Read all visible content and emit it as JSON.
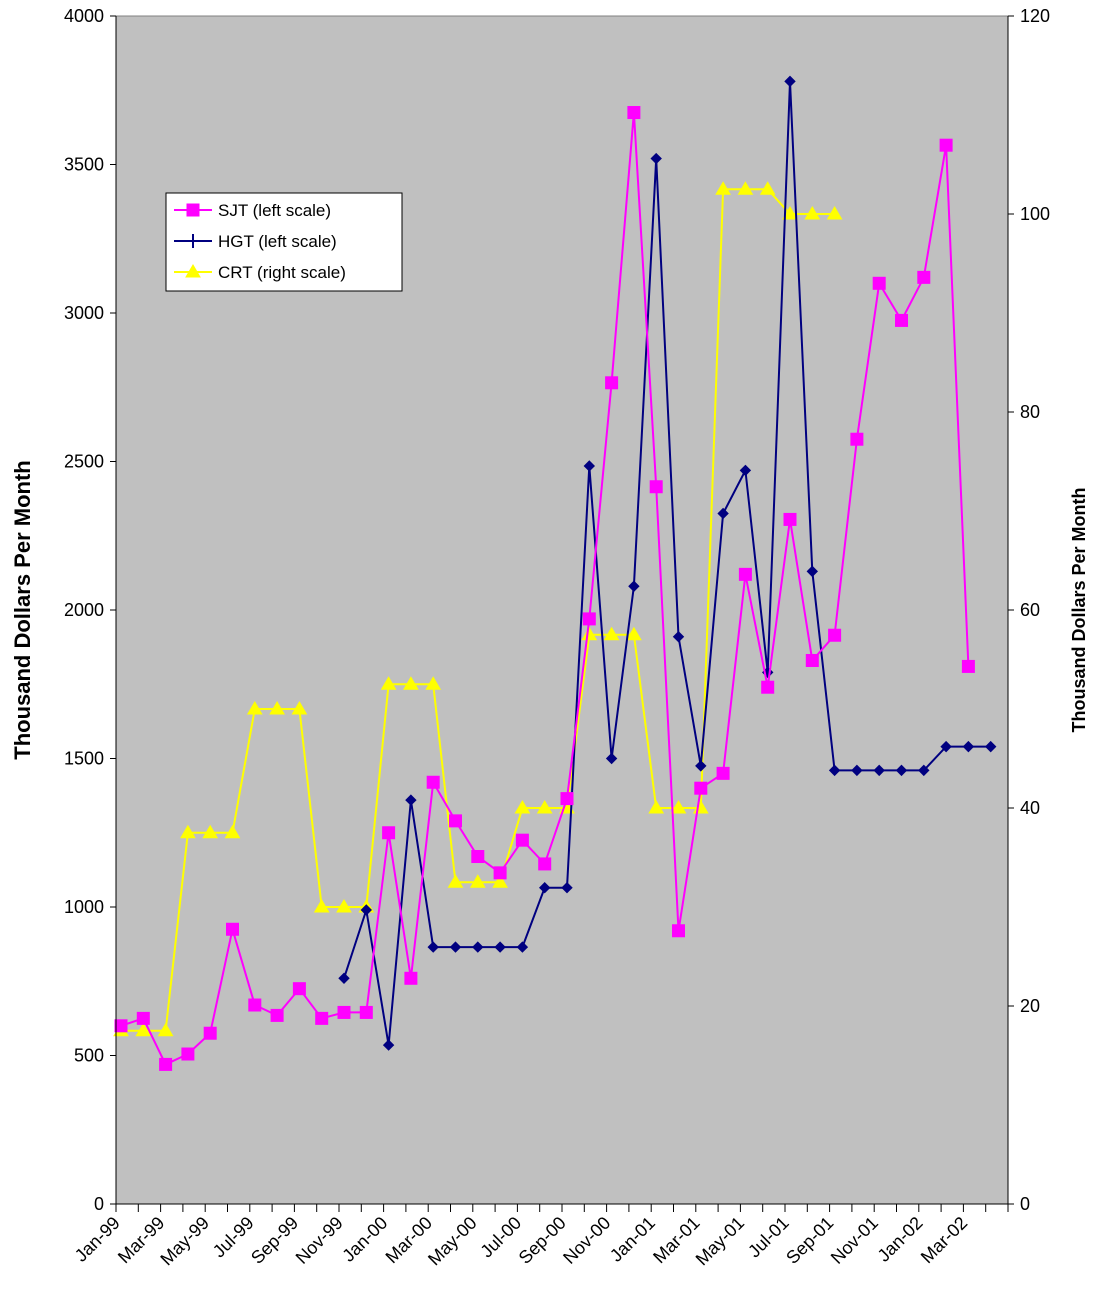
{
  "chart_data": {
    "type": "line",
    "x": [
      "Jan-99",
      "Feb-99",
      "Mar-99",
      "Apr-99",
      "May-99",
      "Jun-99",
      "Jul-99",
      "Aug-99",
      "Sep-99",
      "Oct-99",
      "Nov-99",
      "Dec-99",
      "Jan-00",
      "Feb-00",
      "Mar-00",
      "Apr-00",
      "May-00",
      "Jun-00",
      "Jul-00",
      "Aug-00",
      "Sep-00",
      "Oct-00",
      "Nov-00",
      "Dec-00",
      "Jan-01",
      "Feb-01",
      "Mar-01",
      "Apr-01",
      "May-01",
      "Jun-01",
      "Jul-01",
      "Aug-01",
      "Sep-01",
      "Oct-01",
      "Nov-01",
      "Dec-01",
      "Jan-02",
      "Feb-02",
      "Mar-02",
      "Apr-02"
    ],
    "x_tick_labels": [
      "Jan-99",
      "Mar-99",
      "May-99",
      "Jul-99",
      "Sep-99",
      "Nov-99",
      "Jan-00",
      "Mar-00",
      "May-00",
      "Jul-00",
      "Sep-00",
      "Nov-00",
      "Jan-01",
      "Mar-01",
      "May-01",
      "Jul-01",
      "Sep-01",
      "Nov-01",
      "Jan-02",
      "Mar-02"
    ],
    "ylabel_left": "Thousand Dollars Per Month",
    "ylabel_right": "Thousand Dollars Per Month",
    "ylim_left": [
      0,
      4000
    ],
    "ylim_right": [
      0,
      120
    ],
    "yticks_left": [
      "0",
      "500",
      "1000",
      "1500",
      "2000",
      "2500",
      "3000",
      "3500",
      "4000"
    ],
    "yticks_right": [
      "0",
      "20",
      "40",
      "60",
      "80",
      "100",
      "120"
    ],
    "plot_background": "#c0c0c0",
    "grid": false,
    "legend_position": "upper-left",
    "series": [
      {
        "name": "SJT (left scale)",
        "axis": "left",
        "color": "#ff00ff",
        "marker": "square",
        "values": [
          600,
          625,
          470,
          505,
          575,
          925,
          670,
          635,
          725,
          625,
          645,
          645,
          1250,
          760,
          1420,
          1290,
          1170,
          1115,
          1225,
          1145,
          1365,
          1970,
          2765,
          3675,
          2415,
          920,
          1400,
          1450,
          2120,
          1740,
          2305,
          1830,
          1915,
          2575,
          3100,
          2975,
          3120,
          3565,
          1810,
          null
        ]
      },
      {
        "name": "HGT (left scale)",
        "axis": "left",
        "color": "#000080",
        "marker": "plus-diamond",
        "values": [
          null,
          null,
          null,
          null,
          null,
          null,
          null,
          null,
          null,
          null,
          760,
          990,
          535,
          1360,
          865,
          865,
          865,
          865,
          865,
          1065,
          1065,
          2485,
          1500,
          2080,
          3520,
          1910,
          1475,
          2325,
          2470,
          1790,
          3780,
          2130,
          1460,
          1460,
          1460,
          1460,
          1460,
          1540,
          1540,
          1540
        ]
      },
      {
        "name": "CRT (right scale)",
        "axis": "right",
        "color": "#ffff00",
        "marker": "triangle",
        "values": [
          17.5,
          17.5,
          17.5,
          37.5,
          37.5,
          37.5,
          50,
          50,
          50,
          30,
          30,
          30,
          52.5,
          52.5,
          52.5,
          32.5,
          32.5,
          32.5,
          40,
          40,
          40,
          57.5,
          57.5,
          57.5,
          40,
          40,
          40,
          102.5,
          102.5,
          102.5,
          100,
          100,
          100,
          null,
          null,
          null,
          null,
          null,
          null,
          null
        ]
      }
    ]
  }
}
